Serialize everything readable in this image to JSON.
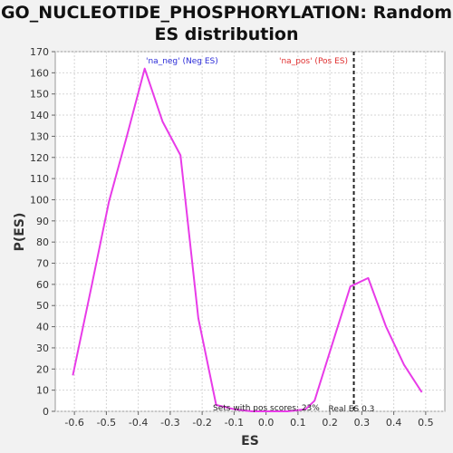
{
  "chart_data": {
    "type": "line",
    "title_line1": "GO_NUCLEOTIDE_PHOSPHORYLATION: Random",
    "title_line2": "ES distribution",
    "xlabel": "ES",
    "ylabel": "P(ES)",
    "xlim": [
      -0.66,
      0.56
    ],
    "ylim": [
      0,
      170
    ],
    "x_ticks": [
      -0.6,
      -0.5,
      -0.4,
      -0.3,
      -0.2,
      -0.1,
      0.0,
      0.1,
      0.2,
      0.3,
      0.4,
      0.5
    ],
    "x_tick_labels": [
      "-0.6",
      "-0.5",
      "-0.4",
      "-0.3",
      "-0.2",
      "-0.1",
      "0.0",
      "0.1",
      "0.2",
      "0.3",
      "0.4",
      "0.5"
    ],
    "y_ticks": [
      0,
      10,
      20,
      30,
      40,
      50,
      60,
      70,
      80,
      90,
      100,
      110,
      120,
      130,
      140,
      150,
      160,
      170
    ],
    "grid": true,
    "series": [
      {
        "color": "#e83be8",
        "x": [
          -0.605,
          -0.548,
          -0.492,
          -0.436,
          -0.38,
          -0.324,
          -0.268,
          -0.212,
          -0.156,
          -0.1,
          -0.044,
          0.012,
          0.068,
          0.124,
          0.152,
          0.208,
          0.264,
          0.32,
          0.376,
          0.432,
          0.488
        ],
        "y": [
          17,
          58,
          99,
          130,
          162,
          137,
          121,
          44,
          3,
          1,
          0,
          0,
          0,
          1,
          5,
          32,
          59,
          63,
          40,
          22,
          9
        ]
      }
    ],
    "real_es": {
      "x": 0.275,
      "label": "Real ES 0.3"
    },
    "annotations": {
      "neg": {
        "text": "'na_neg' (Neg ES)",
        "color": "#2b2bd8"
      },
      "pos": {
        "text": "'na_pos' (Pos ES)",
        "color": "#e03030"
      },
      "pos_scores": {
        "text": "Sets with pos scores: 23%",
        "color": "#222222"
      }
    }
  }
}
